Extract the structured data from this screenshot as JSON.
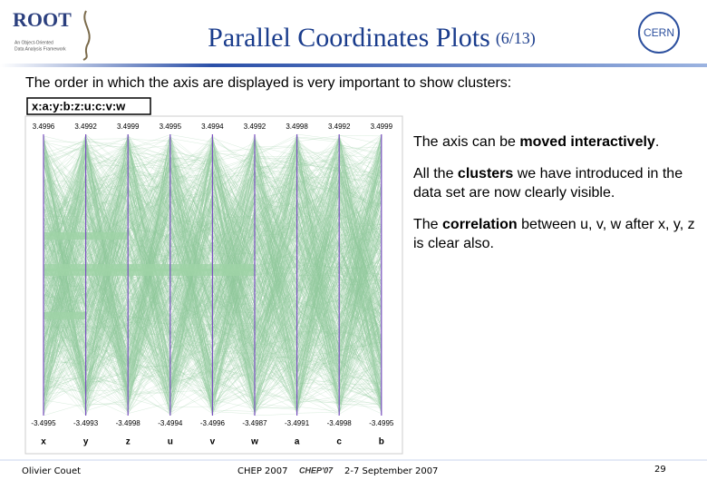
{
  "header": {
    "logo": "ROOT",
    "logo_lines": [
      "An Object-Oriented",
      "Data Analysis Framework"
    ],
    "title": "Parallel Coordinates Plots",
    "counter": "(6/13)",
    "cern": "CERN"
  },
  "intro": "The order in which the axis are displayed is very important to show clusters:",
  "plot": {
    "expression": "x:a:y:b:z:u:c:v:w",
    "axes": [
      {
        "name": "x",
        "max": "3.4996",
        "min": "-3.4995"
      },
      {
        "name": "y",
        "max": "3.4992",
        "min": "-3.4993"
      },
      {
        "name": "z",
        "max": "3.4999",
        "min": "-3.4998"
      },
      {
        "name": "u",
        "max": "3.4995",
        "min": "-3.4994"
      },
      {
        "name": "v",
        "max": "3.4994",
        "min": "-3.4996"
      },
      {
        "name": "w",
        "max": "3.4992",
        "min": "-3.4987"
      },
      {
        "name": "a",
        "max": "3.4998",
        "min": "-3.4991"
      },
      {
        "name": "c",
        "max": "3.4992",
        "min": "-3.4998"
      },
      {
        "name": "b",
        "max": "3.4999",
        "min": "-3.4995"
      }
    ]
  },
  "bullets": [
    [
      {
        "text": "The axis can be ",
        "bold": false
      },
      {
        "text": "moved interactively",
        "bold": true
      },
      {
        "text": ".",
        "bold": false
      }
    ],
    [
      {
        "text": "All the ",
        "bold": false
      },
      {
        "text": "clusters",
        "bold": true
      },
      {
        "text": " we have introduced in the data set are now clearly visible.",
        "bold": false
      }
    ],
    [
      {
        "text": "The ",
        "bold": false
      },
      {
        "text": "correlation",
        "bold": true
      },
      {
        "text": " between u, v, w after x, y, z is clear also.",
        "bold": false
      }
    ]
  ],
  "footer": {
    "author": "Olivier Couet",
    "conference": "CHEP 2007",
    "logo": "CHEP'07",
    "dates": "2-7 September 2007",
    "page": "29"
  }
}
